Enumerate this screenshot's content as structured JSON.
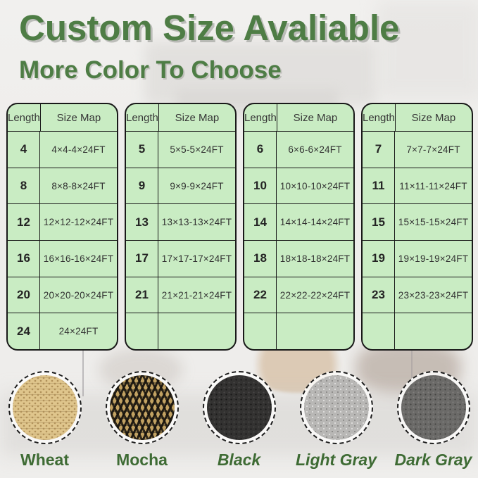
{
  "header": {
    "title": "Custom Size Avaliable",
    "subtitle": "More Color To Choose"
  },
  "size_tables": [
    {
      "headers": [
        "Length",
        "Size Map"
      ],
      "rows": [
        [
          "4",
          "4×4-4×24FT"
        ],
        [
          "8",
          "8×8-8×24FT"
        ],
        [
          "12",
          "12×12-12×24FT"
        ],
        [
          "16",
          "16×16-16×24FT"
        ],
        [
          "20",
          "20×20-20×24FT"
        ],
        [
          "24",
          "24×24FT"
        ]
      ]
    },
    {
      "headers": [
        "Length",
        "Size Map"
      ],
      "rows": [
        [
          "5",
          "5×5-5×24FT"
        ],
        [
          "9",
          "9×9-9×24FT"
        ],
        [
          "13",
          "13×13-13×24FT"
        ],
        [
          "17",
          "17×17-17×24FT"
        ],
        [
          "21",
          "21×21-21×24FT"
        ],
        [
          "",
          ""
        ]
      ]
    },
    {
      "headers": [
        "Length",
        "Size Map"
      ],
      "rows": [
        [
          "6",
          "6×6-6×24FT"
        ],
        [
          "10",
          "10×10-10×24FT"
        ],
        [
          "14",
          "14×14-14×24FT"
        ],
        [
          "18",
          "18×18-18×24FT"
        ],
        [
          "22",
          "22×22-22×24FT"
        ],
        [
          "",
          ""
        ]
      ]
    },
    {
      "headers": [
        "Length",
        "Size Map"
      ],
      "rows": [
        [
          "7",
          "7×7-7×24FT"
        ],
        [
          "11",
          "11×11-11×24FT"
        ],
        [
          "15",
          "15×15-15×24FT"
        ],
        [
          "19",
          "19×19-19×24FT"
        ],
        [
          "23",
          "23×23-23×24FT"
        ],
        [
          "",
          ""
        ]
      ]
    }
  ],
  "swatches": [
    {
      "key": "wheat",
      "label": "Wheat",
      "italic": false,
      "base_color": "#dfc58c"
    },
    {
      "key": "mocha",
      "label": "Mocha",
      "italic": false,
      "base_color": "#c2a262"
    },
    {
      "key": "black",
      "label": "Black",
      "italic": true,
      "base_color": "#333231"
    },
    {
      "key": "light-gray",
      "label": "Light Gray",
      "italic": true,
      "base_color": "#b8b7b5"
    },
    {
      "key": "dark-gray",
      "label": "Dark Gray",
      "italic": true,
      "base_color": "#6b6a68"
    }
  ],
  "palette": {
    "heading_green": "#4e7d45",
    "label_green": "#3e6b34",
    "table_bg": "#c9ecc3",
    "table_border": "#191919",
    "page_bg": "#efeeec"
  }
}
